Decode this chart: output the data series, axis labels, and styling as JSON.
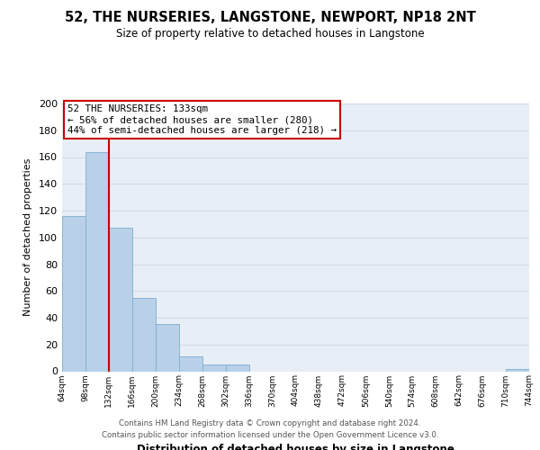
{
  "title": "52, THE NURSERIES, LANGSTONE, NEWPORT, NP18 2NT",
  "subtitle": "Size of property relative to detached houses in Langstone",
  "xlabel": "Distribution of detached houses by size in Langstone",
  "ylabel": "Number of detached properties",
  "bar_color": "#b8d0e8",
  "bar_edge_color": "#7fafd0",
  "property_line_color": "#cc0000",
  "property_label": "52 THE NURSERIES: 133sqm",
  "smaller_pct": "56%",
  "smaller_count": 280,
  "larger_pct": "44%",
  "larger_count": 218,
  "annotation_box_edge": "#cc0000",
  "bin_edges": [
    64,
    98,
    132,
    166,
    200,
    234,
    268,
    302,
    336,
    370,
    404,
    438,
    472,
    506,
    540,
    574,
    608,
    642,
    676,
    710,
    744
  ],
  "bar_heights": [
    116,
    164,
    107,
    55,
    35,
    11,
    5,
    5,
    0,
    0,
    0,
    0,
    0,
    0,
    0,
    0,
    0,
    0,
    0,
    2
  ],
  "ylim": [
    0,
    200
  ],
  "yticks": [
    0,
    20,
    40,
    60,
    80,
    100,
    120,
    140,
    160,
    180,
    200
  ],
  "xtick_labels": [
    "64sqm",
    "98sqm",
    "132sqm",
    "166sqm",
    "200sqm",
    "234sqm",
    "268sqm",
    "302sqm",
    "336sqm",
    "370sqm",
    "404sqm",
    "438sqm",
    "472sqm",
    "506sqm",
    "540sqm",
    "574sqm",
    "608sqm",
    "642sqm",
    "676sqm",
    "710sqm",
    "744sqm"
  ],
  "grid_color": "#d0dce8",
  "bg_color": "#e8eef5",
  "footer_line1": "Contains HM Land Registry data © Crown copyright and database right 2024.",
  "footer_line2": "Contains public sector information licensed under the Open Government Licence v3.0."
}
